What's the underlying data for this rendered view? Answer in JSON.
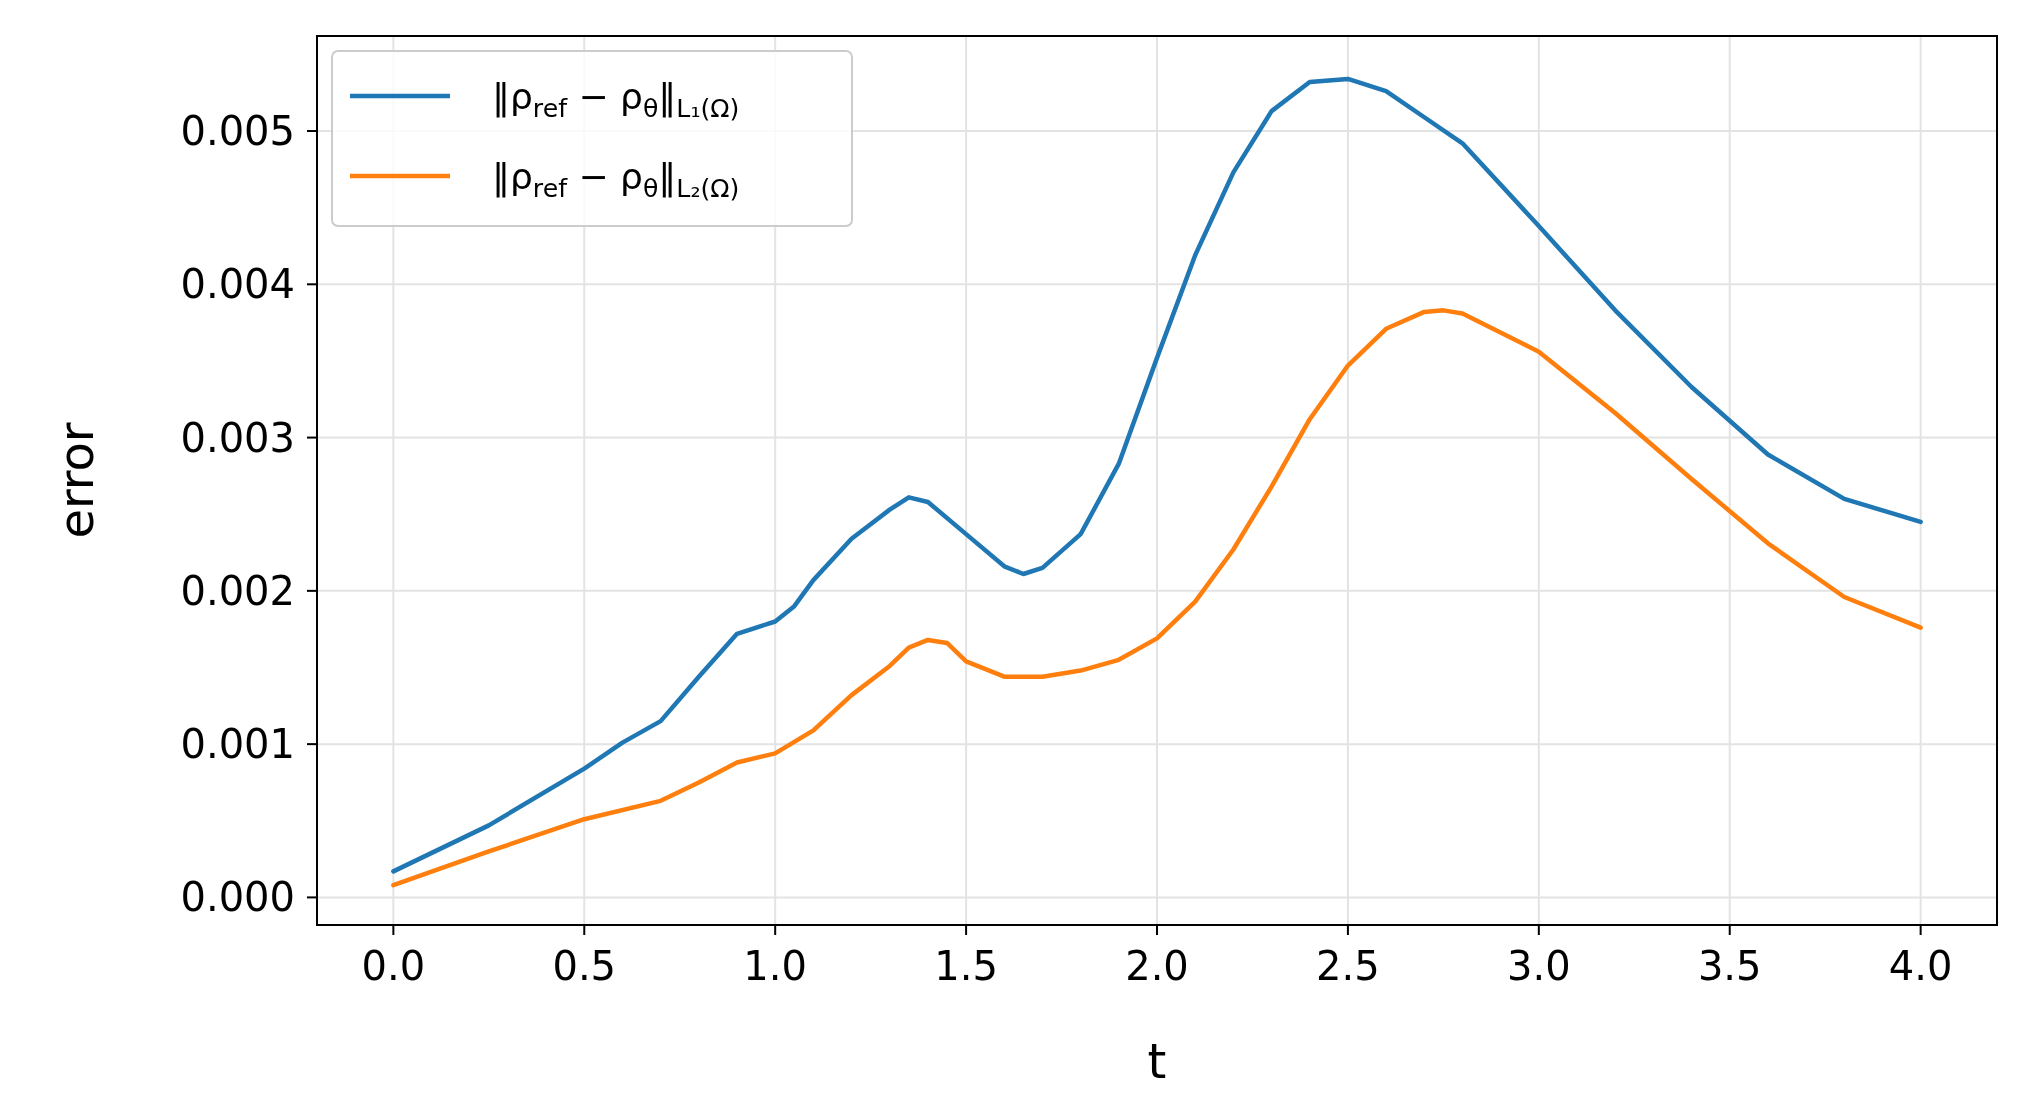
{
  "chart_data": {
    "type": "line",
    "xlabel": "t",
    "ylabel": "error",
    "xlim": [
      -0.2,
      4.2
    ],
    "xticks": [
      {
        "value": 0,
        "label": "0.0"
      },
      {
        "value": 0.5,
        "label": "0.5"
      },
      {
        "value": 1,
        "label": "1.0"
      },
      {
        "value": 1.5,
        "label": "1.5"
      },
      {
        "value": 2,
        "label": "2.0"
      },
      {
        "value": 2.5,
        "label": "2.5"
      },
      {
        "value": 3,
        "label": "3.0"
      },
      {
        "value": 3.5,
        "label": "3.5"
      },
      {
        "value": 4,
        "label": "4.0"
      }
    ],
    "ylim": [
      -0.00018,
      0.00562
    ],
    "yticks": [
      {
        "value": 0,
        "label": "0.000"
      },
      {
        "value": 0.001,
        "label": "0.001"
      },
      {
        "value": 0.002,
        "label": "0.002"
      },
      {
        "value": 0.003,
        "label": "0.003"
      },
      {
        "value": 0.004,
        "label": "0.004"
      },
      {
        "value": 0.005,
        "label": "0.005"
      }
    ],
    "grid": true,
    "legend": "top left",
    "line_style": "solid",
    "marker": "none",
    "series": [
      {
        "name": "‖ρ$_{ref}$ − ρ$_{θ}$‖$_{L₁(Ω)}$",
        "color": "#1f77b4",
        "x": [
          0,
          0.25,
          0.5,
          0.6,
          0.7,
          0.8,
          0.9,
          1.0,
          1.05,
          1.1,
          1.2,
          1.3,
          1.35,
          1.4,
          1.5,
          1.6,
          1.65,
          1.7,
          1.8,
          1.9,
          2.0,
          2.1,
          2.2,
          2.3,
          2.4,
          2.5,
          2.6,
          2.7,
          2.8,
          3.0,
          3.2,
          3.4,
          3.6,
          3.8,
          4.0
        ],
        "values": [
          0.00017,
          0.00047,
          0.00084,
          0.00101,
          0.00115,
          0.00144,
          0.00172,
          0.0018,
          0.0019,
          0.00207,
          0.00234,
          0.00253,
          0.00261,
          0.00258,
          0.00237,
          0.00216,
          0.00211,
          0.00215,
          0.00237,
          0.00283,
          0.00352,
          0.00419,
          0.00473,
          0.00513,
          0.00532,
          0.00534,
          0.00526,
          0.00509,
          0.00492,
          0.00438,
          0.00383,
          0.00333,
          0.00289,
          0.0026,
          0.00245
        ]
      },
      {
        "name": "‖ρ$_{ref}$ − ρ$_{θ}$‖$_{L₂(Ω)}$",
        "color": "#ff7f0e",
        "x": [
          0,
          0.25,
          0.5,
          0.7,
          0.8,
          0.9,
          1.0,
          1.1,
          1.2,
          1.3,
          1.35,
          1.4,
          1.45,
          1.5,
          1.6,
          1.7,
          1.8,
          1.9,
          2.0,
          2.1,
          2.2,
          2.3,
          2.4,
          2.5,
          2.6,
          2.7,
          2.75,
          2.8,
          3.0,
          3.2,
          3.4,
          3.6,
          3.8,
          4.0
        ],
        "values": [
          8e-05,
          0.0003,
          0.00051,
          0.00063,
          0.00075,
          0.00088,
          0.00094,
          0.00109,
          0.00132,
          0.00151,
          0.00163,
          0.00168,
          0.00166,
          0.00154,
          0.00144,
          0.00144,
          0.00148,
          0.00155,
          0.00169,
          0.00193,
          0.00227,
          0.00268,
          0.00312,
          0.00347,
          0.00371,
          0.00382,
          0.00383,
          0.00381,
          0.00356,
          0.00316,
          0.00273,
          0.00231,
          0.00196,
          0.00176
        ]
      }
    ]
  }
}
